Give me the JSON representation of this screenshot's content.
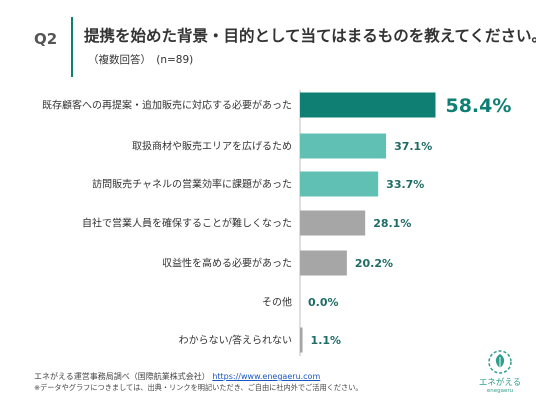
{
  "header": {
    "q_label": "Q2",
    "title": "提携を始めた背景・目的として当てはまるものを教えてください。",
    "note": "（複数回答）　(n=89)"
  },
  "chart_data": {
    "type": "bar",
    "orientation": "horizontal",
    "categories": [
      "既存顧客への再提案・追加販売に対応する必要があった",
      "取扱商材や販売エリアを広げるため",
      "訪問販売チャネルの営業効率に課題があった",
      "自社で営業人員を確保することが難しくなった",
      "収益性を高める必要があった",
      "その他",
      "わからない/答えられない"
    ],
    "values": [
      58.4,
      37.1,
      33.7,
      28.1,
      20.2,
      0.0,
      1.1
    ],
    "value_labels": [
      "58.4%",
      "37.1%",
      "33.7%",
      "28.1%",
      "20.2%",
      "0.0%",
      "1.1%"
    ],
    "colors": [
      "#0e7f72",
      "#5fc0b3",
      "#5fc0b3",
      "#a6a6a6",
      "#a6a6a6",
      "#a6a6a6",
      "#a6a6a6"
    ],
    "xlim": [
      0,
      100
    ],
    "grid": false,
    "legend": "none"
  },
  "footer": {
    "source": "エネがえる運営事務局調べ（国際航業株式会社）",
    "link": "https://www.enegaeru.com",
    "notice": "※データやグラフにつきましては、出典・リンクを明記いただき、ご自由に社内外でご活用ください。"
  },
  "logo": {
    "text": "エネがえる",
    "sub": "enegaeru"
  },
  "colors": {
    "accent": "#0e7f72",
    "secondary": "#5fc0b3",
    "neutral": "#a6a6a6"
  }
}
